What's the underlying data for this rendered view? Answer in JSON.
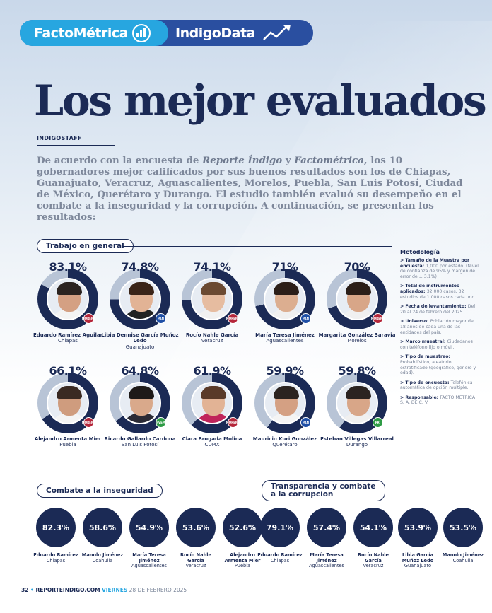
{
  "brand": {
    "left": "FactoMétrica",
    "right": "IndigoData"
  },
  "headline": "Los mejor evaluados",
  "byline": "INDIGOSTAFF",
  "intro": {
    "p1": "De acuerdo con la encuesta de ",
    "src1": "Reporte Índigo",
    "p2": " y ",
    "src2": "Factométrica",
    "p3": ", los 10 gobernadores mejor calificados por sus buenos resultados son los de Chiapas, Guanajuato, Veracruz, Aguascalientes, Morelos, Puebla, San Luis Potosí, Ciudad de México, Querétaro y Durango. El estudio también evaluó su desempeño en el combate a la inseguridad y la corrupción. A continuación, se presentan los resultados:"
  },
  "general": {
    "label": "Trabajo en general",
    "governors": [
      {
        "pct": "83.1%",
        "value": 83.1,
        "name": "Eduardo Ramírez Aguilar",
        "state": "Chiapas",
        "party": "MORENA",
        "party_color": "#b5263a"
      },
      {
        "pct": "74.8%",
        "value": 74.8,
        "name": "Libia Dennise García Muñoz Ledo",
        "state": "Guanajuato",
        "party": "PAN",
        "party_color": "#1f4fa6"
      },
      {
        "pct": "74.1%",
        "value": 74.1,
        "name": "Rocío Nahle García",
        "state": "Veracruz",
        "party": "MORENA",
        "party_color": "#b5263a"
      },
      {
        "pct": "71%",
        "value": 71,
        "name": "María Teresa Jiménez",
        "state": "Aguascalientes",
        "party": "PAN",
        "party_color": "#1f4fa6"
      },
      {
        "pct": "70%",
        "value": 70,
        "name": "Margarita González Saravia",
        "state": "Morelos",
        "party": "MORENA",
        "party_color": "#b5263a"
      },
      {
        "pct": "66.1%",
        "value": 66.1,
        "name": "Alejandro Armenta Mier",
        "state": "Puebla",
        "party": "MORENA",
        "party_color": "#b5263a"
      },
      {
        "pct": "64.8%",
        "value": 64.8,
        "name": "Ricardo Gallardo Cardona",
        "state": "San Luis Potosí",
        "party": "PVEM",
        "party_color": "#2e9b45"
      },
      {
        "pct": "61.9%",
        "value": 61.9,
        "name": "Clara Brugada Molina",
        "state": "CDMX",
        "party": "MORENA",
        "party_color": "#b5263a"
      },
      {
        "pct": "59.9%",
        "value": 59.9,
        "name": "Mauricio Kuri González",
        "state": "Querétaro",
        "party": "PAN",
        "party_color": "#1f4fa6"
      },
      {
        "pct": "59.8%",
        "value": 59.8,
        "name": "Esteban Villegas Villarreal",
        "state": "Durango",
        "party": "PRI",
        "party_color": "#2e9b45"
      }
    ]
  },
  "methodology": {
    "title": "Metodología",
    "items": [
      {
        "k": "Tamaño de la Muestra por encuesta:",
        "v": "1,000 por estado. (Nivel de confianza de 95% y margen de error de ± 3.1%)"
      },
      {
        "k": "Total de instrumentos aplicados:",
        "v": "32,000 casos, 32 estudios de 1,000 casos cada uno."
      },
      {
        "k": "Fecha de levantamiento:",
        "v": "Del 20 al 24 de febrero del 2025."
      },
      {
        "k": "Universo:",
        "v": "Población mayor de 18 años de cada una de las entidades del país."
      },
      {
        "k": "Marco muestral:",
        "v": "Ciudadanos con teléfono fijo o móvil."
      },
      {
        "k": "Tipo de muestreo:",
        "v": "Probabilístico, aleatorio estratificado (geográfico, género y edad)."
      },
      {
        "k": "Tipo de encuesta:",
        "v": "Telefónica automática de opción múltiple."
      },
      {
        "k": "Responsable:",
        "v": "FACTO MÉTRICA S. A. DE C. V."
      }
    ]
  },
  "security": {
    "label": "Combate a la inseguridad",
    "items": [
      {
        "pct": "82.3%",
        "name": "Eduardo Ramírez",
        "state": "Chiapas"
      },
      {
        "pct": "58.6%",
        "name": "Manolo Jiménez",
        "state": "Coahuila"
      },
      {
        "pct": "54.9%",
        "name": "María Teresa Jiménez",
        "state": "Aguascalientes"
      },
      {
        "pct": "53.6%",
        "name": "Rocío Nahle García",
        "state": "Veracruz"
      },
      {
        "pct": "52.6%",
        "name": "Alejandro Armenta Mier",
        "state": "Puebla"
      }
    ]
  },
  "corruption": {
    "label_line1": "Transparencia y combate",
    "label_line2": "a la corrupcion",
    "items": [
      {
        "pct": "79.1%",
        "name": "Eduardo Ramírez",
        "state": "Chiapas"
      },
      {
        "pct": "57.4%",
        "name": "María Teresa Jiménez",
        "state": "Aguascalientes"
      },
      {
        "pct": "54.1%",
        "name": "Rocío Nahle García",
        "state": "Veracruz"
      },
      {
        "pct": "53.9%",
        "name": "Libia García Muñoz Ledo",
        "state": "Guanajuato"
      },
      {
        "pct": "53.5%",
        "name": "Manolo Jiménez",
        "state": "Coahuila"
      }
    ]
  },
  "footer": {
    "page": "32",
    "site": "REPORTEINDIGO.COM",
    "day": "VIERNES",
    "date": "28 DE FEBRERO 2025"
  },
  "colors": {
    "navy": "#1b2a55",
    "cyan": "#27a6e0",
    "blue": "#2a4fa0",
    "ring_track": "#b8c4d6"
  }
}
